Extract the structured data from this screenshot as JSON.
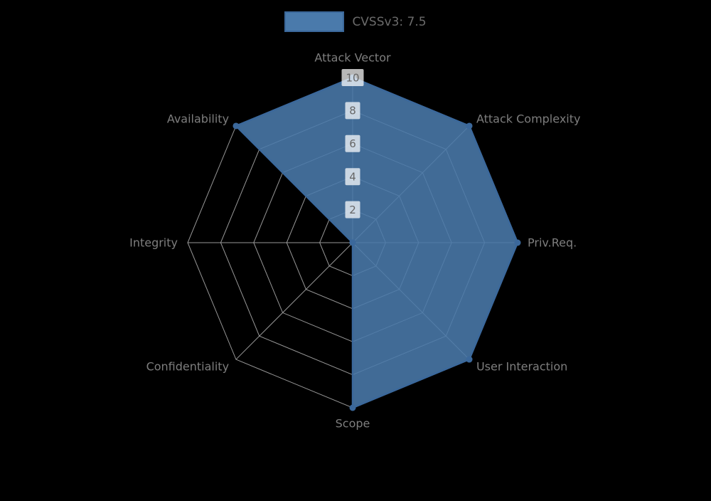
{
  "legend": {
    "label": "CVSSv3: 7.5",
    "position": "top"
  },
  "chart_data": {
    "type": "radar",
    "categories": [
      "Attack Vector",
      "Attack Complexity",
      "Priv.Req.",
      "User Interaction",
      "Scope",
      "Confidentiality",
      "Integrity",
      "Availability"
    ],
    "series": [
      {
        "name": "CVSSv3: 7.5",
        "values": [
          10,
          10,
          10,
          10,
          10,
          0,
          0,
          10
        ]
      }
    ],
    "ticks": [
      "2",
      "4",
      "6",
      "8",
      "10"
    ],
    "rmax": 10,
    "grid": true,
    "grid_shape": "polygon",
    "legend_position": "top",
    "colors": {
      "background": "#000000",
      "fill": "#4a7aab",
      "stroke": "#3b689b",
      "grid": "#bdbdbd",
      "label": "#7e7e7e",
      "tick_text": "#666666",
      "tick_backdrop": "rgba(255,255,255,0.72)",
      "legend_text": "#6b6b6b"
    }
  }
}
